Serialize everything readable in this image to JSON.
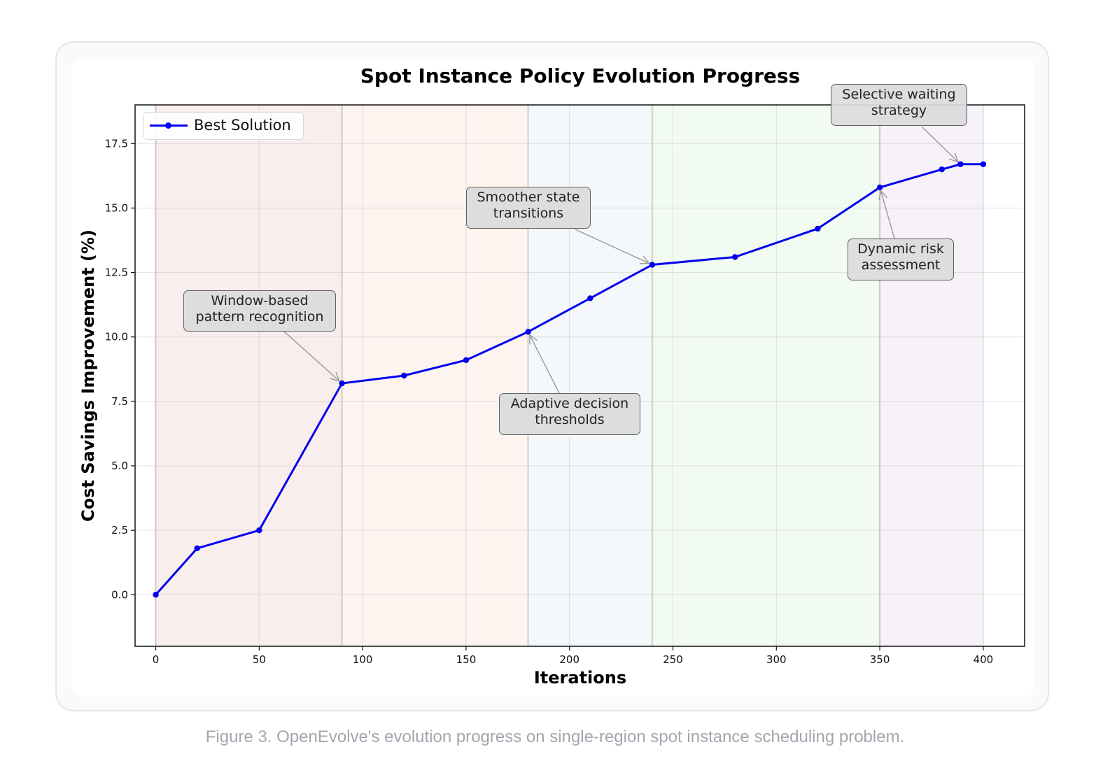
{
  "caption": "Figure 3. OpenEvolve's evolution progress on single-region spot instance scheduling problem.",
  "chart_data": {
    "type": "line",
    "title": "Spot Instance Policy Evolution Progress",
    "xlabel": "Iterations",
    "ylabel": "Cost Savings Improvement (%)",
    "xlim": [
      -10,
      420
    ],
    "ylim": [
      -2.0,
      19.0
    ],
    "xticks": [
      0,
      50,
      100,
      150,
      200,
      250,
      300,
      350,
      400
    ],
    "xtick_labels": [
      "0",
      "50",
      "100",
      "150",
      "200",
      "250",
      "300",
      "350",
      "400"
    ],
    "yticks": [
      0.0,
      2.5,
      5.0,
      7.5,
      10.0,
      12.5,
      15.0,
      17.5
    ],
    "ytick_labels": [
      "0.0",
      "2.5",
      "5.0",
      "7.5",
      "10.0",
      "12.5",
      "15.0",
      "17.5"
    ],
    "grid": true,
    "legend": {
      "position": "top-left",
      "entries": [
        "Best Solution"
      ]
    },
    "series": [
      {
        "name": "Best Solution",
        "color": "#0000ee",
        "x": [
          0,
          20,
          50,
          90,
          120,
          150,
          180,
          210,
          240,
          280,
          320,
          350,
          380,
          389,
          400
        ],
        "y": [
          0.0,
          1.8,
          2.5,
          8.2,
          8.5,
          9.1,
          10.2,
          11.5,
          12.8,
          13.1,
          14.2,
          15.8,
          16.5,
          16.7,
          16.7
        ]
      }
    ],
    "phases": [
      {
        "start": 0,
        "end": 90,
        "color": "#f9eeee"
      },
      {
        "start": 90,
        "end": 180,
        "color": "#fdf3ef"
      },
      {
        "start": 180,
        "end": 240,
        "color": "#f4f8fa"
      },
      {
        "start": 240,
        "end": 350,
        "color": "#f2fbf1"
      },
      {
        "start": 350,
        "end": 400,
        "color": "#f7f2f9"
      }
    ],
    "annotations": [
      {
        "text": "Window-based\npattern recognition",
        "x": 90,
        "y": 8.2
      },
      {
        "text": "Adaptive decision\nthresholds",
        "x": 180,
        "y": 10.2
      },
      {
        "text": "Smoother state\ntransitions",
        "x": 240,
        "y": 12.8
      },
      {
        "text": "Dynamic risk\nassessment",
        "x": 350,
        "y": 15.8
      },
      {
        "text": "Selective waiting\nstrategy",
        "x": 389,
        "y": 16.7
      }
    ]
  }
}
